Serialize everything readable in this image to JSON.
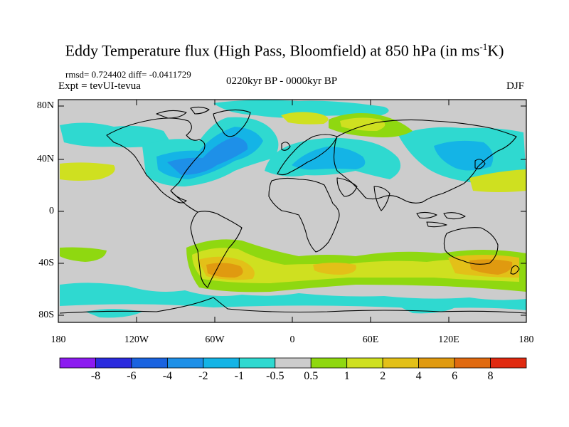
{
  "title": {
    "main": "Eddy Temperature flux (High Pass, Bloomfield) at 850 hPa (in ms",
    "exponent": "-1",
    "suffix": "K)"
  },
  "stats": "rmsd= 0.724402 diff= -0.0411729",
  "experiment": "Expt = tevUI-tevua",
  "period": "0220kyr BP - 0000kyr BP",
  "season": "DJF",
  "map": {
    "background_color": "#cccccc",
    "coastline_color": "#000000",
    "lat_labels": [
      "80N",
      "40N",
      "0",
      "40S",
      "80S"
    ],
    "lon_labels": [
      "180",
      "120W",
      "60W",
      "0",
      "60E",
      "120E",
      "180"
    ]
  },
  "colorbar": {
    "colors": [
      "#8c1bf0",
      "#2b2bde",
      "#1a63e0",
      "#1e90e8",
      "#14b4e6",
      "#2fd9d0",
      "#cccccc",
      "#8fd810",
      "#cfe020",
      "#e3c018",
      "#e09a10",
      "#e06a10",
      "#e02a10"
    ],
    "labels": [
      "-8",
      "-6",
      "-4",
      "-2",
      "-1",
      "-0.5",
      "0.5",
      "1",
      "2",
      "4",
      "6",
      "8"
    ]
  }
}
